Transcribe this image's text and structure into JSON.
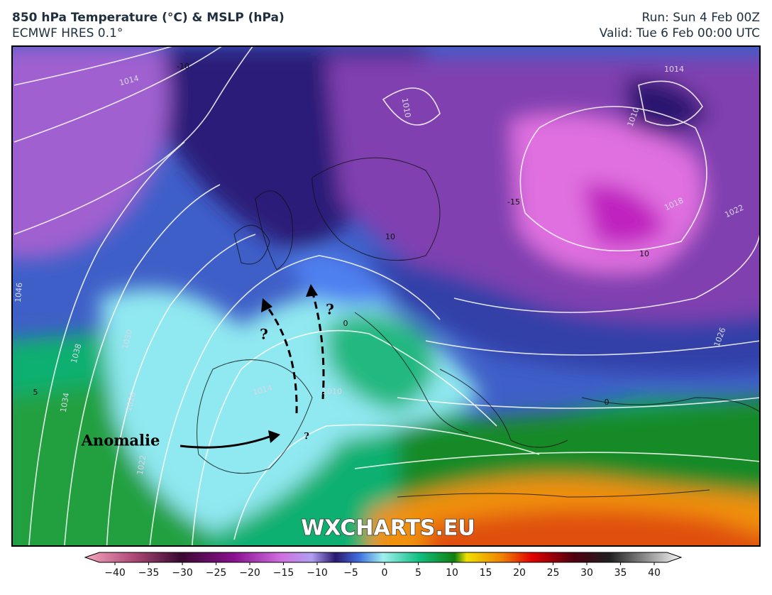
{
  "header": {
    "title": "850 hPa Temperature (°C) & MSLP (hPa)",
    "subtitle": "ECMWF HRES 0.1°",
    "run": "Run: Sun 4 Feb 00Z",
    "valid": "Valid: Tue 6 Feb 00:00 UTC"
  },
  "map": {
    "annotation": "Anomalie",
    "question_marks": [
      "?",
      "?",
      "?"
    ],
    "isobar_labels": [
      "1014",
      "1014",
      "1010",
      "1010",
      "1018",
      "1022",
      "1026",
      "1046",
      "1038",
      "1030",
      "1034",
      "1026",
      "1022",
      "1014",
      "1010"
    ],
    "temperature_labels": [
      "-10",
      "-15",
      "10",
      "10",
      "0",
      "0",
      "5"
    ],
    "watermark": "WXCHARTS.EU"
  },
  "colorbar": {
    "ticks": [
      {
        "value": -40,
        "label": "−40"
      },
      {
        "value": -35,
        "label": "−35"
      },
      {
        "value": -30,
        "label": "−30"
      },
      {
        "value": -25,
        "label": "−25"
      },
      {
        "value": -20,
        "label": "−20"
      },
      {
        "value": -15,
        "label": "−15"
      },
      {
        "value": -10,
        "label": "−10"
      },
      {
        "value": -5,
        "label": "−5"
      },
      0,
      5,
      10,
      15,
      20,
      25,
      30,
      35,
      40
    ]
  }
}
